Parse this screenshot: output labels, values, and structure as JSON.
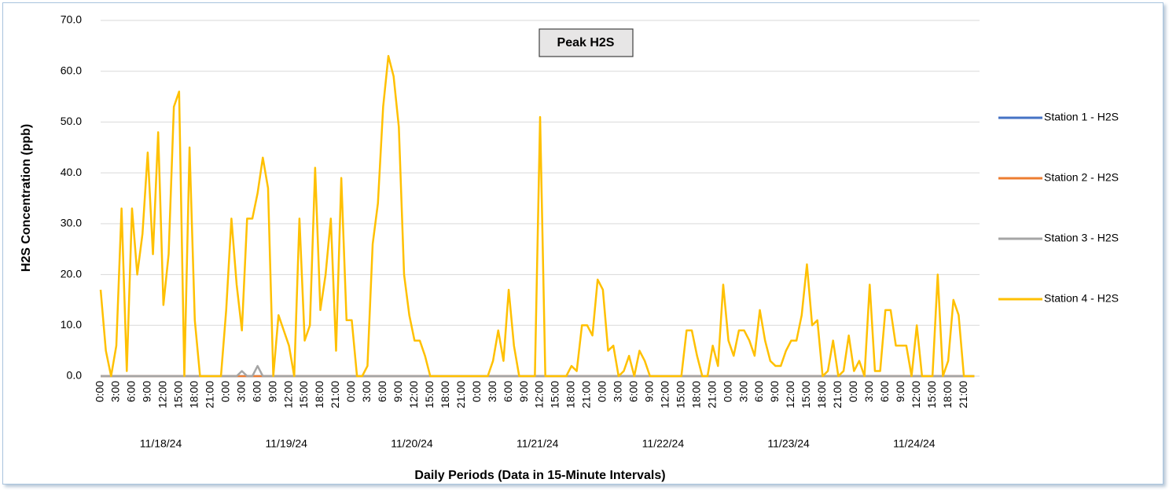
{
  "chart_data": {
    "type": "line",
    "title": "Peak H2S",
    "y_label": "H2S Concentration (ppb)",
    "x_label": "Daily Periods (Data in 15-Minute Intervals)",
    "groups": [
      "11/18/24",
      "11/19/24",
      "11/20/24",
      "11/21/24",
      "11/22/24",
      "11/23/24",
      "11/24/24"
    ],
    "categories": [
      "0:00",
      null,
      null,
      "3:00",
      null,
      null,
      "6:00",
      null,
      null,
      "9:00",
      null,
      null,
      "12:00",
      null,
      null,
      "15:00",
      null,
      null,
      "18:00",
      null,
      null,
      "21:00",
      null,
      null,
      "0:00",
      null,
      null,
      "3:00",
      null,
      null,
      "6:00",
      null,
      null,
      "9:00",
      null,
      null,
      "12:00",
      null,
      null,
      "15:00",
      null,
      null,
      "18:00",
      null,
      null,
      "21:00",
      null,
      null,
      "0:00",
      null,
      null,
      "3:00",
      null,
      null,
      "6:00",
      null,
      null,
      "9:00",
      null,
      null,
      "12:00",
      null,
      null,
      "15:00",
      null,
      null,
      "18:00",
      null,
      null,
      "21:00",
      null,
      null,
      "0:00",
      null,
      null,
      "3:00",
      null,
      null,
      "6:00",
      null,
      null,
      "9:00",
      null,
      null,
      "12:00",
      null,
      null,
      "15:00",
      null,
      null,
      "18:00",
      null,
      null,
      "21:00",
      null,
      null,
      "0:00",
      null,
      null,
      "3:00",
      null,
      null,
      "6:00",
      null,
      null,
      "9:00",
      null,
      null,
      "12:00",
      null,
      null,
      "15:00",
      null,
      null,
      "18:00",
      null,
      null,
      "21:00",
      null,
      null,
      "0:00",
      null,
      null,
      "3:00",
      null,
      null,
      "6:00",
      null,
      null,
      "9:00",
      null,
      null,
      "12:00",
      null,
      null,
      "15:00",
      null,
      null,
      "18:00",
      null,
      null,
      "21:00",
      null,
      null,
      "0:00",
      null,
      null,
      "3:00",
      null,
      null,
      "6:00",
      null,
      null,
      "9:00",
      null,
      null,
      "12:00",
      null,
      null,
      "15:00",
      null,
      null,
      "18:00",
      null,
      null,
      "21:00",
      null,
      null
    ],
    "series": [
      {
        "name": "Station 1 - H2S",
        "color": "#4472c4",
        "values": [
          0,
          0,
          0,
          0,
          0,
          0,
          0,
          0,
          0,
          0,
          0,
          0,
          0,
          0,
          0,
          0,
          0,
          0,
          0,
          0,
          0,
          0,
          0,
          0,
          0,
          0,
          0,
          0,
          0,
          0,
          0,
          0,
          0,
          0,
          0,
          0,
          0,
          0,
          0,
          0,
          0,
          0,
          0,
          0,
          0,
          0,
          0,
          0,
          0,
          0,
          0,
          0,
          0,
          0,
          0,
          0,
          0,
          0,
          0,
          0,
          0,
          0,
          0,
          0,
          0,
          0,
          0,
          0,
          0,
          0,
          0,
          0,
          0,
          0,
          0,
          0,
          0,
          0,
          0,
          0,
          0,
          0,
          0,
          0,
          0,
          0,
          0,
          0,
          0,
          0,
          0,
          0,
          0,
          0,
          0,
          0,
          0,
          0,
          0,
          0,
          0,
          0,
          0,
          0,
          0,
          0,
          0,
          0,
          0,
          0,
          0,
          0,
          0,
          0,
          0,
          0,
          0,
          0,
          0,
          0,
          0,
          0,
          0,
          0,
          0,
          0,
          0,
          0,
          0,
          0,
          0,
          0,
          0,
          0,
          0,
          0,
          0,
          0,
          0,
          0,
          0,
          0,
          0,
          0,
          0,
          0,
          0,
          0,
          0,
          0,
          0,
          0,
          0,
          0,
          0,
          0,
          0,
          0,
          0,
          0,
          0,
          0,
          0,
          0,
          0,
          0,
          0,
          0
        ]
      },
      {
        "name": "Station 2 - H2S",
        "color": "#ed7d31",
        "values": [
          0,
          0,
          0,
          0,
          0,
          0,
          0,
          0,
          0,
          0,
          0,
          0,
          0,
          0,
          0,
          0,
          0,
          0,
          0,
          0,
          0,
          0,
          0,
          0,
          0,
          0,
          0,
          0,
          0,
          0,
          0,
          0,
          0,
          0,
          0,
          0,
          0,
          0,
          0,
          0,
          0,
          0,
          0,
          0,
          0,
          0,
          0,
          0,
          0,
          0,
          0,
          0,
          0,
          0,
          0,
          0,
          0,
          0,
          0,
          0,
          0,
          0,
          0,
          0,
          0,
          0,
          0,
          0,
          0,
          0,
          0,
          0,
          0,
          0,
          0,
          0,
          0,
          0,
          0,
          0,
          0,
          0,
          0,
          0,
          0,
          0,
          0,
          0,
          0,
          0,
          0,
          0,
          0,
          0,
          0,
          0,
          0,
          0,
          0,
          0,
          0,
          0,
          0,
          0,
          0,
          0,
          0,
          0,
          0,
          0,
          0,
          0,
          0,
          0,
          0,
          0,
          0,
          0,
          0,
          0,
          0,
          0,
          0,
          0,
          0,
          0,
          0,
          0,
          0,
          0,
          0,
          0,
          0,
          0,
          0,
          0,
          0,
          0,
          0,
          0,
          0,
          0,
          0,
          0,
          0,
          0,
          0,
          0,
          0,
          0,
          0,
          0,
          0,
          0,
          0,
          0,
          0,
          0,
          0,
          0,
          0,
          0,
          0,
          0,
          0,
          0,
          0,
          0
        ]
      },
      {
        "name": "Station 3 - H2S",
        "color": "#a5a5a5",
        "values": [
          0,
          0,
          0,
          0,
          0,
          0,
          0,
          0,
          0,
          0,
          0,
          0,
          0,
          0,
          0,
          0,
          0,
          0,
          0,
          0,
          0,
          0,
          0,
          0,
          0,
          0,
          0,
          1,
          0,
          0,
          2,
          0,
          0,
          0,
          0,
          0,
          0,
          0,
          0,
          0,
          0,
          0,
          0,
          0,
          0,
          0,
          0,
          0,
          0,
          0,
          0,
          0,
          0,
          0,
          0,
          0,
          0,
          0,
          0,
          0,
          0,
          0,
          0,
          0,
          0,
          0,
          0,
          0,
          0,
          0,
          0,
          0,
          0,
          0,
          0,
          0,
          0,
          0,
          0,
          0,
          0,
          0,
          0,
          0,
          0,
          0,
          0,
          0,
          0,
          0,
          0,
          0,
          0,
          0,
          0,
          0,
          0,
          0,
          0,
          0,
          0,
          0,
          0,
          0,
          0,
          0,
          0,
          0,
          0,
          0,
          0,
          0,
          0,
          0,
          0,
          0,
          0,
          0,
          0,
          0,
          0,
          0,
          0,
          0,
          0,
          0,
          0,
          0,
          0,
          0,
          0,
          0,
          0,
          0,
          0,
          0,
          0,
          0,
          0,
          0,
          0,
          0,
          0,
          0,
          0,
          0,
          0,
          0,
          0,
          0,
          0,
          0,
          0,
          0,
          0,
          0,
          0,
          0,
          0,
          0,
          0,
          0,
          0,
          0,
          0,
          0,
          0,
          0
        ]
      },
      {
        "name": "Station 4 - H2S",
        "color": "#ffc000",
        "values": [
          17,
          5,
          0,
          6,
          33,
          1,
          33,
          20,
          28,
          44,
          24,
          48,
          14,
          24,
          53,
          56,
          0,
          45,
          11,
          0,
          0,
          0,
          0,
          0,
          13,
          31,
          18,
          9,
          31,
          31,
          36,
          43,
          37,
          0,
          12,
          9,
          6,
          0,
          31,
          7,
          10,
          41,
          13,
          20,
          31,
          5,
          39,
          11,
          11,
          0,
          0,
          2,
          26,
          34,
          53,
          63,
          59,
          49,
          20,
          12,
          7,
          7,
          4,
          0,
          0,
          0,
          0,
          0,
          0,
          0,
          0,
          0,
          0,
          0,
          0,
          3,
          9,
          3,
          17,
          6,
          0,
          0,
          0,
          0,
          51,
          0,
          0,
          0,
          0,
          0,
          2,
          1,
          10,
          10,
          8,
          19,
          17,
          5,
          6,
          0,
          1,
          4,
          0,
          5,
          3,
          0,
          0,
          0,
          0,
          0,
          0,
          0,
          9,
          9,
          4,
          0,
          0,
          6,
          2,
          18,
          7,
          4,
          9,
          9,
          7,
          4,
          13,
          7,
          3,
          2,
          2,
          5,
          7,
          7,
          12,
          22,
          10,
          11,
          0,
          1,
          7,
          0,
          1,
          8,
          1,
          3,
          0,
          18,
          1,
          1,
          13,
          13,
          6,
          6,
          6,
          0,
          10,
          0,
          0,
          0,
          20,
          0,
          3,
          15,
          12,
          0,
          0,
          0
        ]
      }
    ],
    "ylim": [
      0,
      70
    ],
    "yticks": [
      {
        "value": 0,
        "label": "0.0"
      },
      {
        "value": 10,
        "label": "10.0"
      },
      {
        "value": 20,
        "label": "20.0"
      },
      {
        "value": 30,
        "label": "30.0"
      },
      {
        "value": 40,
        "label": "40.0"
      },
      {
        "value": 50,
        "label": "50.0"
      },
      {
        "value": 60,
        "label": "60.0"
      },
      {
        "value": 70,
        "label": "70.0"
      }
    ],
    "grid": true,
    "legend": "right"
  }
}
